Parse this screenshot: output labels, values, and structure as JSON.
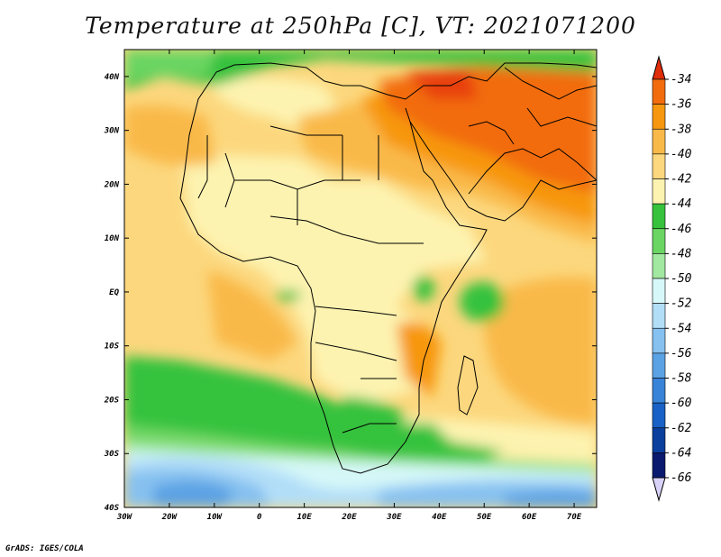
{
  "title": "Temperature at 250hPa [C], VT: 2021071200",
  "credit": "GrADS: IGES/COLA",
  "map": {
    "lon_range": [
      -30,
      75
    ],
    "lat_range": [
      -40,
      45
    ],
    "lon_ticks": [
      {
        "value": -30,
        "label": "30W"
      },
      {
        "value": -20,
        "label": "20W"
      },
      {
        "value": -10,
        "label": "10W"
      },
      {
        "value": 0,
        "label": "0"
      },
      {
        "value": 10,
        "label": "10E"
      },
      {
        "value": 20,
        "label": "20E"
      },
      {
        "value": 30,
        "label": "30E"
      },
      {
        "value": 40,
        "label": "40E"
      },
      {
        "value": 50,
        "label": "50E"
      },
      {
        "value": 60,
        "label": "60E"
      },
      {
        "value": 70,
        "label": "70E"
      }
    ],
    "lat_ticks": [
      {
        "value": 40,
        "label": "40N"
      },
      {
        "value": 30,
        "label": "30N"
      },
      {
        "value": 20,
        "label": "20N"
      },
      {
        "value": 10,
        "label": "10N"
      },
      {
        "value": 0,
        "label": "EQ"
      },
      {
        "value": -10,
        "label": "10S"
      },
      {
        "value": -20,
        "label": "20S"
      },
      {
        "value": -30,
        "label": "30S"
      },
      {
        "value": -40,
        "label": "40S"
      }
    ]
  },
  "colorbar": {
    "labels": [
      "-34",
      "-36",
      "-38",
      "-40",
      "-42",
      "-44",
      "-46",
      "-48",
      "-50",
      "-52",
      "-54",
      "-56",
      "-58",
      "-60",
      "-62",
      "-64",
      "-66"
    ],
    "colors": [
      "#e8400a",
      "#f26c0e",
      "#f7970f",
      "#f9b949",
      "#fcd77d",
      "#fdf3b0",
      "#36c23c",
      "#6ad562",
      "#a2e8a0",
      "#d6f8f8",
      "#b2def8",
      "#86c1f0",
      "#5ba2e4",
      "#3983d8",
      "#1a61c6",
      "#0a3f9e",
      "#0a1a6e"
    ],
    "top_arrow_color": "#e22d0a",
    "bottom_arrow_color": "#d8d2f8"
  }
}
